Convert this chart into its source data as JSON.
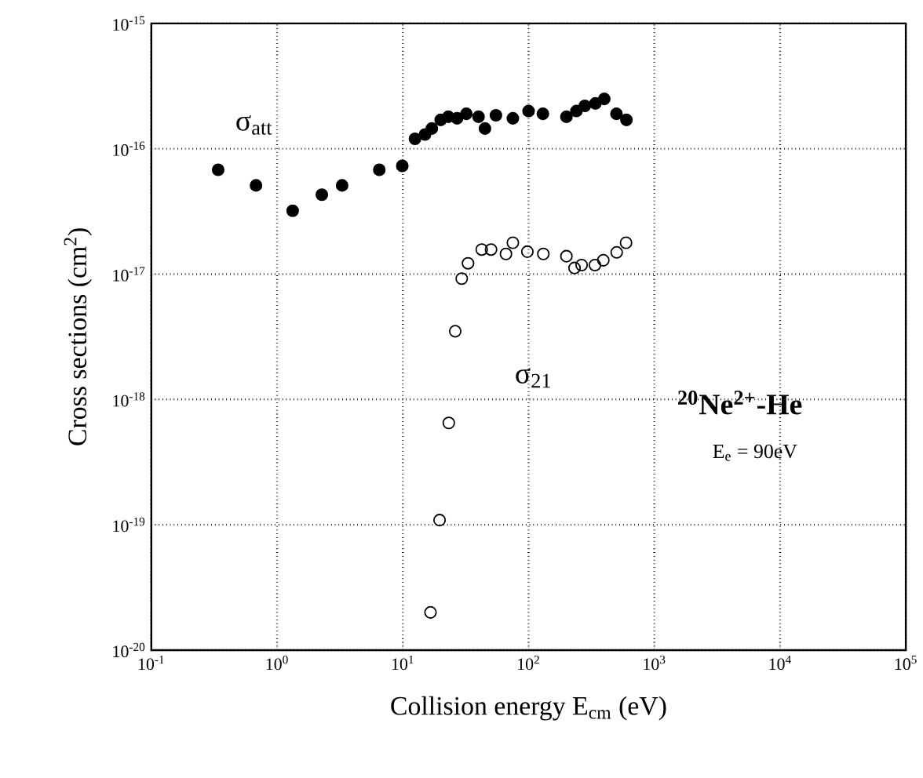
{
  "chart_data": {
    "type": "scatter",
    "xlabel": "Collision energy  E$_{cm}$ (eV)",
    "ylabel": "Cross sections (cm$^{2}$)",
    "log": "xy",
    "grid": true,
    "xlim": [
      0.1,
      100000
    ],
    "ylim": [
      1e-20,
      1e-15
    ],
    "xticks": [
      {
        "value": 0.1,
        "label": "10$^{-1}$"
      },
      {
        "value": 1,
        "label": "10$^{0}$"
      },
      {
        "value": 10,
        "label": "10$^{1}$"
      },
      {
        "value": 100,
        "label": "10$^{2}$"
      },
      {
        "value": 1000,
        "label": "10$^{3}$"
      },
      {
        "value": 10000,
        "label": "10$^{4}$"
      },
      {
        "value": 100000,
        "label": "10$^{5}$"
      }
    ],
    "yticks": [
      {
        "value": 1e-20,
        "label": "10$^{-20}$"
      },
      {
        "value": 1e-19,
        "label": "10$^{-19}$"
      },
      {
        "value": 1e-18,
        "label": "10$^{-18}$"
      },
      {
        "value": 1e-17,
        "label": "10$^{-17}$"
      },
      {
        "value": 1e-16,
        "label": "10$^{-16}$"
      },
      {
        "value": 1e-15,
        "label": "10$^{-15}$"
      }
    ],
    "series": [
      {
        "name": "σ$_{att}$",
        "color": "#000000",
        "marker": "circle",
        "x": [
          0.34,
          0.68,
          1.33,
          2.27,
          3.29,
          6.5,
          9.9,
          12.5,
          15,
          17,
          20,
          23,
          27,
          32,
          40,
          45,
          55,
          75,
          100,
          130,
          200,
          240,
          280,
          340,
          400,
          500,
          600
        ],
        "values": [
          6.8e-17,
          5.1e-17,
          3.2e-17,
          4.3e-17,
          5.1e-17,
          6.8e-17,
          7.3e-17,
          1.2e-16,
          1.3e-16,
          1.45e-16,
          1.7e-16,
          1.8e-16,
          1.75e-16,
          1.9e-16,
          1.8e-16,
          1.45e-16,
          1.85e-16,
          1.75e-16,
          2e-16,
          1.9e-16,
          1.8e-16,
          2e-16,
          2.2e-16,
          2.3e-16,
          2.5e-16,
          1.9e-16,
          1.7e-16
        ]
      },
      {
        "name": "σ$_{21}$",
        "color": "#000000",
        "marker": "open circle",
        "x": [
          16.6,
          19.6,
          23.2,
          26.1,
          29.4,
          33,
          42.4,
          50.3,
          66.1,
          75,
          97.8,
          131,
          200,
          232,
          264,
          337,
          393,
          502,
          596
        ],
        "values": [
          2e-20,
          1.09e-19,
          6.5e-19,
          3.5e-18,
          9.2e-18,
          1.22e-17,
          1.57e-17,
          1.57e-17,
          1.45e-17,
          1.78e-17,
          1.51e-17,
          1.45e-17,
          1.39e-17,
          1.12e-17,
          1.18e-17,
          1.18e-17,
          1.29e-17,
          1.49e-17,
          1.78e-17
        ]
      }
    ],
    "annotations": [
      "$^{20}$Ne$^{2+}$-He",
      "E$_{e}$ = 90eV"
    ]
  }
}
